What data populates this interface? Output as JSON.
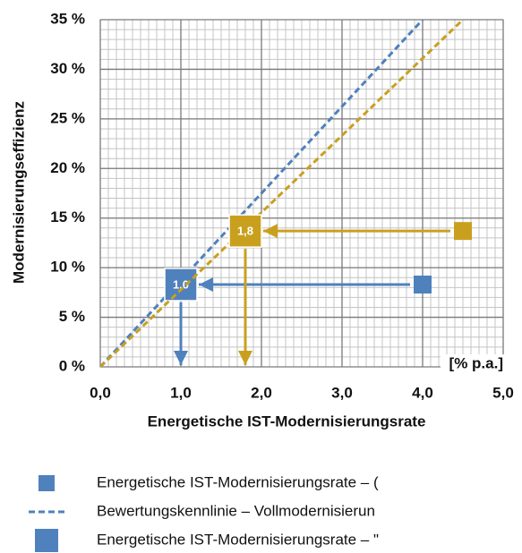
{
  "chart_data": {
    "type": "line",
    "x_label": "Energetische IST-Modernisierungsrate",
    "y_label": "Modernisierungseffizienz",
    "unit_label": "[% p.a.]",
    "xlim": [
      0,
      5
    ],
    "ylim": [
      0,
      35
    ],
    "xticks": [
      {
        "value": 0,
        "label": "0,0"
      },
      {
        "value": 1,
        "label": "1,0"
      },
      {
        "value": 2,
        "label": "2,0"
      },
      {
        "value": 3,
        "label": "3,0"
      },
      {
        "value": 4,
        "label": "4,0"
      },
      {
        "value": 5,
        "label": "5,0"
      }
    ],
    "yticks": [
      {
        "value": 0,
        "label": "0 %"
      },
      {
        "value": 5,
        "label": "5 %"
      },
      {
        "value": 10,
        "label": "10 %"
      },
      {
        "value": 15,
        "label": "15 %"
      },
      {
        "value": 20,
        "label": "20 %"
      },
      {
        "value": 25,
        "label": "25 %"
      },
      {
        "value": 30,
        "label": "30 %"
      },
      {
        "value": 35,
        "label": "35 %"
      }
    ],
    "grid": true,
    "minor_grid_step": {
      "x": 0.1,
      "y": 1
    },
    "series": [
      {
        "name": "Energetische IST-Modernisierungsrate – (",
        "color": "#4f81bd",
        "marker": "square",
        "x": [
          4.0
        ],
        "values": [
          8.3
        ]
      },
      {
        "name": "Bewertungskennlinie – Vollmodernisierun",
        "color": "#4f81bd",
        "line": "dashed",
        "x": [
          0,
          4.0
        ],
        "values": [
          0,
          35
        ]
      },
      {
        "name": "Energetische IST-Modernisierungsrate – \"",
        "color": "#4f81bd",
        "marker": "square-large",
        "x": [
          1.0
        ],
        "values": [
          8.3
        ],
        "point_labels": [
          "1,0"
        ]
      },
      {
        "color": "#c9a01e",
        "marker": "square",
        "x": [
          4.5
        ],
        "values": [
          13.7
        ]
      },
      {
        "color": "#c9a01e",
        "line": "dashed",
        "x": [
          0,
          4.5
        ],
        "values": [
          0,
          35
        ]
      },
      {
        "color": "#c9a01e",
        "marker": "square-large",
        "x": [
          1.8
        ],
        "values": [
          13.7
        ],
        "point_labels": [
          "1,8"
        ]
      }
    ]
  }
}
